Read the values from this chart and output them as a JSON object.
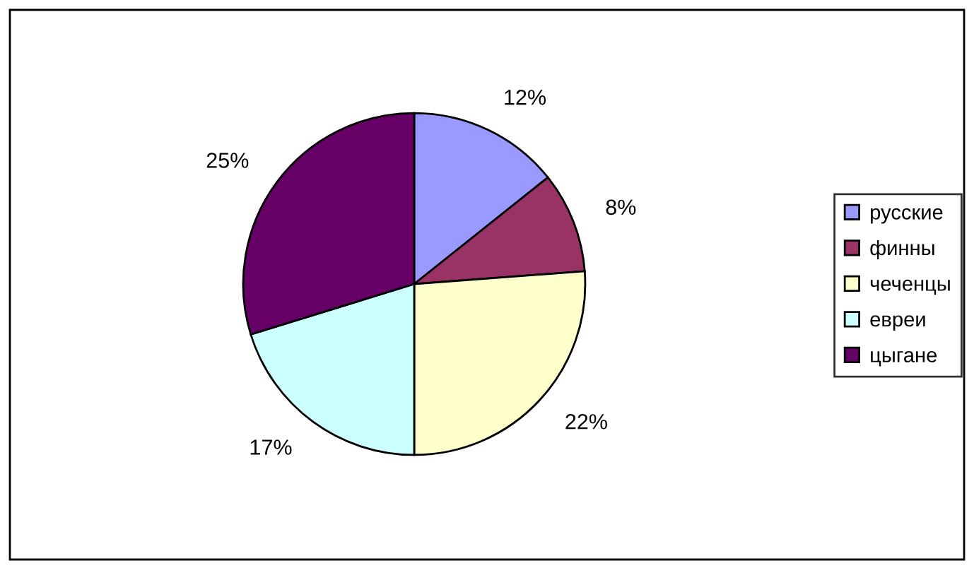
{
  "chart_data": {
    "type": "pie",
    "categories": [
      "русские",
      "финны",
      "чеченцы",
      "евреи",
      "цыгане"
    ],
    "values": [
      12,
      8,
      22,
      17,
      25
    ],
    "colors": [
      "#9999ff",
      "#993366",
      "#ffffcc",
      "#ccffff",
      "#660066"
    ],
    "value_labels": [
      "12%",
      "8%",
      "22%",
      "17%",
      "25%"
    ],
    "legend": "right"
  }
}
